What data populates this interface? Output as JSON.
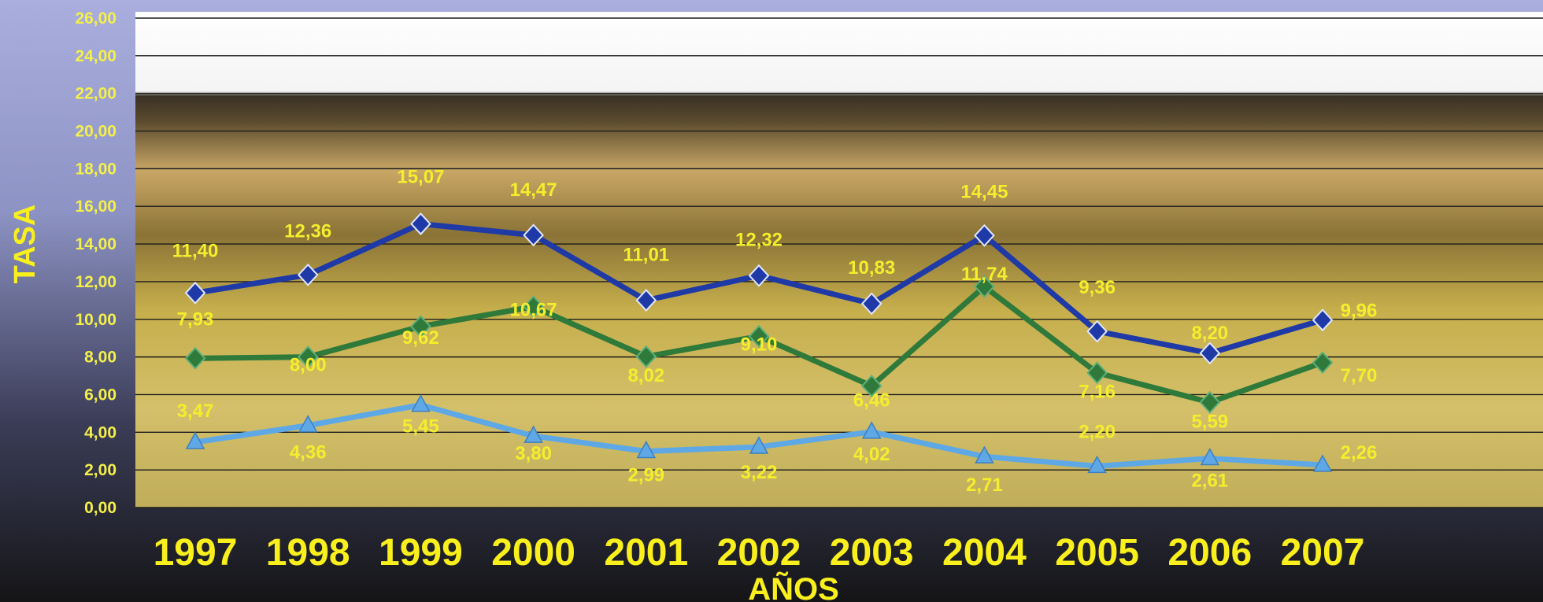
{
  "chart_data": {
    "type": "line",
    "title": "",
    "xlabel": "AÑOS",
    "ylabel": "TASA",
    "categories": [
      "1997",
      "1998",
      "1999",
      "2000",
      "2001",
      "2002",
      "2003",
      "2004",
      "2005",
      "2006",
      "2007"
    ],
    "ylim": [
      0,
      26
    ],
    "y_ticks": [
      "0,00",
      "2,00",
      "4,00",
      "6,00",
      "8,00",
      "10,00",
      "12,00",
      "14,00",
      "16,00",
      "18,00",
      "20,00",
      "22,00",
      "24,00",
      "26,00"
    ],
    "grid": true,
    "legend": "none",
    "series": [
      {
        "color": "#1f3aa6",
        "marker": "diamond",
        "values": [
          11.4,
          12.36,
          15.07,
          14.47,
          11.01,
          12.32,
          10.83,
          14.45,
          9.36,
          8.2,
          9.96
        ],
        "labels": [
          "11,40",
          "12,36",
          "15,07",
          "14,47",
          "11,01",
          "12,32",
          "10,83",
          "14,45",
          "9,36",
          "8,20",
          "9,96"
        ]
      },
      {
        "color": "#2f7a3a",
        "marker": "diamond",
        "values": [
          7.93,
          8.0,
          9.62,
          10.67,
          8.02,
          9.1,
          6.46,
          11.74,
          7.16,
          5.59,
          7.7
        ],
        "labels": [
          "7,93",
          "8,00",
          "9,62",
          "10,67",
          "8,02",
          "9,10",
          "6,46",
          "11,74",
          "7,16",
          "5,59",
          "7,70"
        ]
      },
      {
        "color": "#5fa8e6",
        "marker": "triangle",
        "values": [
          3.47,
          4.36,
          5.45,
          3.8,
          2.99,
          3.22,
          4.02,
          2.71,
          2.2,
          2.61,
          2.26
        ],
        "labels": [
          "3,47",
          "4,36",
          "5,45",
          "3,80",
          "2,99",
          "3,22",
          "4,02",
          "2,71",
          "2,20",
          "2,61",
          "2,26"
        ]
      }
    ]
  }
}
